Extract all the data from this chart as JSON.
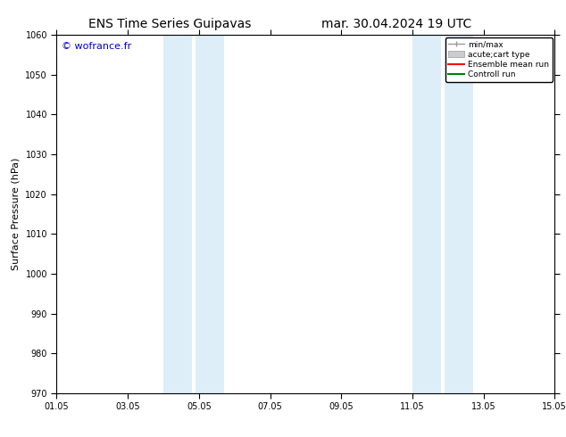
{
  "title_left": "ENS Time Series Guipavas",
  "title_right": "mar. 30.04.2024 19 UTC",
  "ylabel": "Surface Pressure (hPa)",
  "ylim": [
    970,
    1060
  ],
  "yticks": [
    970,
    980,
    990,
    1000,
    1010,
    1020,
    1030,
    1040,
    1050,
    1060
  ],
  "xlim_start": 0,
  "xlim_end": 14,
  "xtick_labels": [
    "01.05",
    "03.05",
    "05.05",
    "07.05",
    "09.05",
    "11.05",
    "13.05",
    "15.05"
  ],
  "xtick_positions": [
    0,
    2,
    4,
    6,
    8,
    10,
    12,
    14
  ],
  "shaded_bands": [
    {
      "x_start": 3.0,
      "x_end": 3.8,
      "color": "#ddeef8"
    },
    {
      "x_start": 3.9,
      "x_end": 4.7,
      "color": "#ddeef8"
    },
    {
      "x_start": 10.0,
      "x_end": 10.8,
      "color": "#ddeef8"
    },
    {
      "x_start": 10.9,
      "x_end": 11.7,
      "color": "#ddeef8"
    }
  ],
  "watermark": "© wofrance.fr",
  "watermark_color": "#0000cc",
  "bg_color": "#ffffff",
  "legend_labels": [
    "min/max",
    "acute;cart type",
    "Ensemble mean run",
    "Controll run"
  ],
  "legend_line_colors": [
    "#999999",
    "#cccccc",
    "#ff0000",
    "#008000"
  ],
  "title_fontsize": 10,
  "tick_fontsize": 7,
  "ylabel_fontsize": 8,
  "spine_color": "#000000"
}
